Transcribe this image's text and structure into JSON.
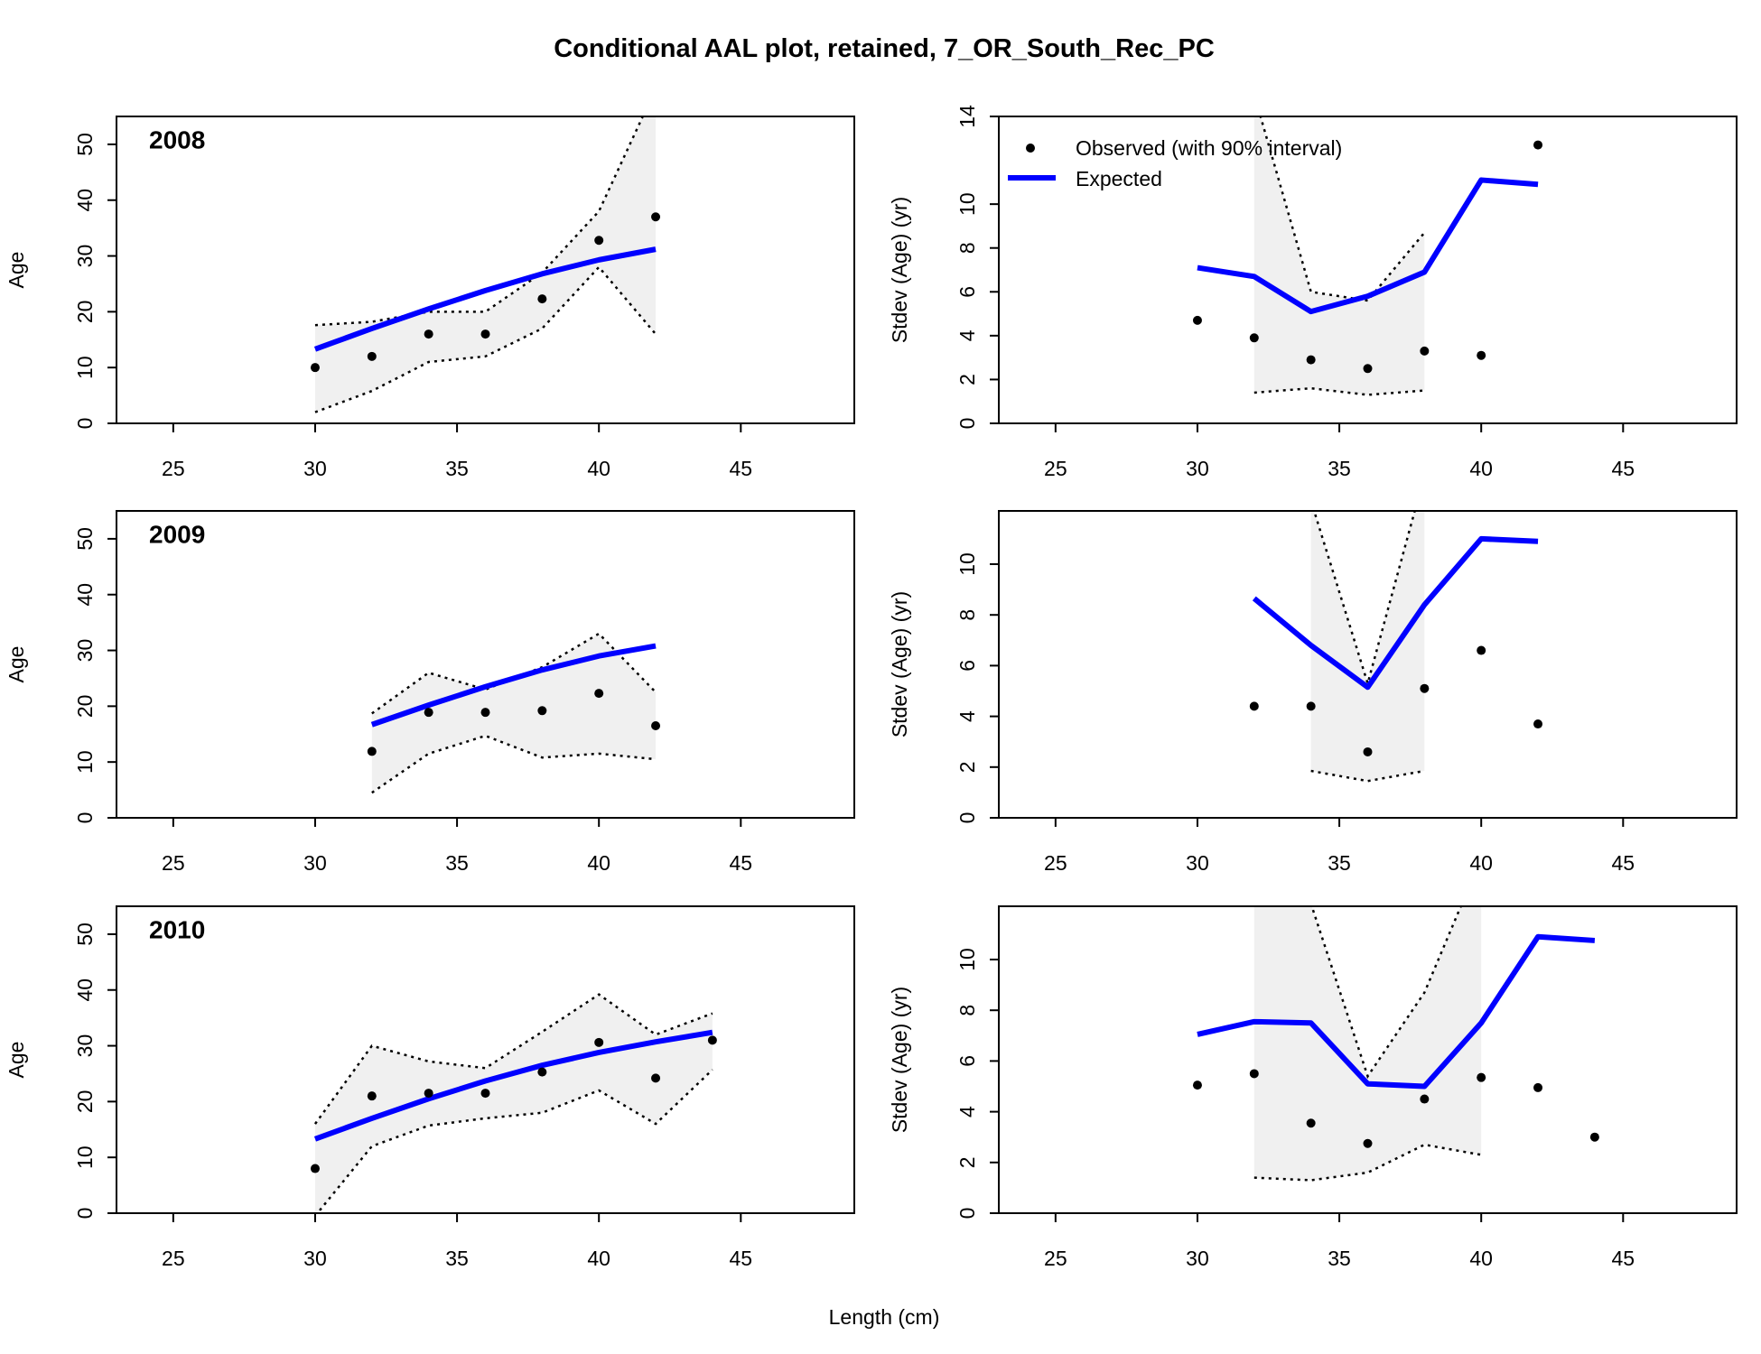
{
  "title": "Conditional AAL plot, retained, 7_OR_South_Rec_PC",
  "xlabel": "Length (cm)",
  "chart_data": [
    {
      "type": "line",
      "label": "2008",
      "ylabel": "Age",
      "xlim": [
        23,
        49
      ],
      "xticks": [
        25,
        30,
        35,
        40,
        45
      ],
      "ylim": [
        0,
        55
      ],
      "yticks": [
        0,
        10,
        20,
        30,
        40,
        50
      ],
      "expected_color": "#0000ff",
      "shade_color": "#f0f0f0",
      "x": [
        30,
        32,
        34,
        36,
        38,
        40,
        42
      ],
      "expected": [
        13.3,
        17,
        20.5,
        23.8,
        26.8,
        29.3,
        31.2
      ],
      "observed": [
        10,
        12,
        16,
        16,
        22.3,
        32.8,
        37
      ],
      "lower": [
        2,
        5.8,
        11,
        12,
        17,
        28,
        16
      ],
      "upper": [
        17.6,
        18.2,
        20,
        20,
        27,
        38,
        60
      ]
    },
    {
      "type": "line",
      "ylabel": "Stdev (Age) (yr)",
      "xlim": [
        23,
        49
      ],
      "xticks": [
        25,
        30,
        35,
        40,
        45
      ],
      "ylim": [
        0,
        14
      ],
      "yticks": [
        0,
        2,
        4,
        6,
        8,
        10,
        14
      ],
      "expected_color": "#0000ff",
      "shade_color": "#f0f0f0",
      "legend": [
        "Observed (with 90% interval)",
        "Expected"
      ],
      "x": [
        30,
        32,
        34,
        36,
        38,
        40,
        42
      ],
      "expected": [
        7.1,
        6.7,
        5.1,
        5.8,
        6.9,
        11.1,
        10.9
      ],
      "observed": [
        4.7,
        3.9,
        2.9,
        2.5,
        3.3,
        3.1,
        12.7
      ],
      "lower": [
        null,
        1.4,
        1.6,
        1.3,
        1.5,
        null,
        null
      ],
      "upper": [
        null,
        15,
        6.0,
        5.6,
        8.7,
        null,
        null
      ]
    },
    {
      "type": "line",
      "label": "2009",
      "ylabel": "Age",
      "xlim": [
        23,
        49
      ],
      "xticks": [
        25,
        30,
        35,
        40,
        45
      ],
      "ylim": [
        0,
        55
      ],
      "yticks": [
        0,
        10,
        20,
        30,
        40,
        50
      ],
      "expected_color": "#0000ff",
      "shade_color": "#f0f0f0",
      "x": [
        32,
        34,
        36,
        38,
        40,
        42
      ],
      "expected": [
        16.7,
        20.2,
        23.5,
        26.5,
        29,
        30.8
      ],
      "observed": [
        11.9,
        18.9,
        18.9,
        19.2,
        22.3,
        16.5
      ],
      "lower": [
        4.5,
        11.5,
        14.7,
        10.8,
        11.5,
        10.5
      ],
      "upper": [
        18.7,
        26,
        23,
        27,
        33,
        22.5
      ]
    },
    {
      "type": "line",
      "ylabel": "Stdev (Age) (yr)",
      "xlim": [
        23,
        49
      ],
      "xticks": [
        25,
        30,
        35,
        40,
        45
      ],
      "ylim": [
        0,
        12.1
      ],
      "yticks": [
        0,
        2,
        4,
        6,
        8,
        10
      ],
      "expected_color": "#0000ff",
      "shade_color": "#f0f0f0",
      "x": [
        32,
        34,
        36,
        38,
        40,
        42
      ],
      "expected": [
        8.65,
        6.8,
        5.15,
        8.4,
        11.0,
        10.9
      ],
      "observed": [
        4.4,
        4.4,
        2.6,
        5.1,
        6.6,
        3.7
      ],
      "lower": [
        null,
        1.85,
        1.45,
        1.85,
        null,
        null
      ],
      "upper": [
        null,
        12.5,
        5.3,
        13.5,
        null,
        null
      ]
    },
    {
      "type": "line",
      "label": "2010",
      "ylabel": "Age",
      "xlim": [
        23,
        49
      ],
      "xticks": [
        25,
        30,
        35,
        40,
        45
      ],
      "ylim": [
        0,
        55
      ],
      "yticks": [
        0,
        10,
        20,
        30,
        40,
        50
      ],
      "expected_color": "#0000ff",
      "shade_color": "#f0f0f0",
      "x": [
        30,
        32,
        34,
        36,
        38,
        40,
        42,
        44
      ],
      "expected": [
        13.3,
        17,
        20.5,
        23.7,
        26.5,
        28.8,
        30.7,
        32.4
      ],
      "observed": [
        8,
        21,
        21.5,
        21.5,
        25.3,
        30.6,
        24.2,
        31
      ],
      "lower": [
        -0.5,
        12,
        15.7,
        17,
        18,
        22,
        16,
        25.7
      ],
      "upper": [
        16,
        30,
        27.2,
        26,
        32.5,
        39.2,
        32,
        35.8
      ]
    },
    {
      "type": "line",
      "ylabel": "Stdev (Age) (yr)",
      "xlim": [
        23,
        49
      ],
      "xticks": [
        25,
        30,
        35,
        40,
        45
      ],
      "ylim": [
        0,
        12.1
      ],
      "yticks": [
        0,
        2,
        4,
        6,
        8,
        10
      ],
      "expected_color": "#0000ff",
      "shade_color": "#f0f0f0",
      "x": [
        30,
        32,
        34,
        36,
        38,
        40,
        42,
        44
      ],
      "expected": [
        7.05,
        7.55,
        7.5,
        5.1,
        5.0,
        7.5,
        10.9,
        10.75
      ],
      "observed": [
        5.05,
        5.5,
        3.55,
        2.75,
        4.5,
        5.35,
        4.95,
        3.0
      ],
      "lower": [
        null,
        1.4,
        1.3,
        1.6,
        2.7,
        2.3,
        null,
        null
      ],
      "upper": [
        null,
        14,
        12.2,
        5.4,
        8.7,
        14,
        null,
        null
      ]
    }
  ]
}
